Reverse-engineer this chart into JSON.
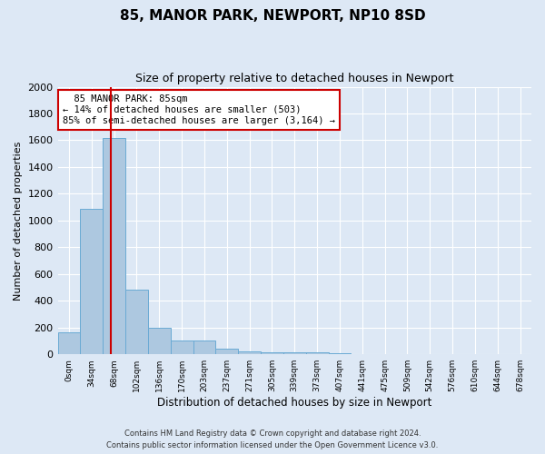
{
  "title1": "85, MANOR PARK, NEWPORT, NP10 8SD",
  "title2": "Size of property relative to detached houses in Newport",
  "xlabel": "Distribution of detached houses by size in Newport",
  "ylabel": "Number of detached properties",
  "bar_color": "#adc8e0",
  "bar_edge_color": "#6aaad4",
  "background_color": "#dde8f5",
  "fig_background_color": "#dde8f5",
  "grid_color": "#ffffff",
  "categories": [
    "0sqm",
    "34sqm",
    "68sqm",
    "102sqm",
    "136sqm",
    "170sqm",
    "203sqm",
    "237sqm",
    "271sqm",
    "305sqm",
    "339sqm",
    "373sqm",
    "407sqm",
    "441sqm",
    "475sqm",
    "509sqm",
    "542sqm",
    "576sqm",
    "610sqm",
    "644sqm",
    "678sqm"
  ],
  "values": [
    165,
    1085,
    1620,
    480,
    200,
    100,
    100,
    40,
    25,
    15,
    15,
    15,
    5,
    0,
    0,
    0,
    0,
    0,
    0,
    0,
    0
  ],
  "ylim": [
    0,
    2000
  ],
  "yticks": [
    0,
    200,
    400,
    600,
    800,
    1000,
    1200,
    1400,
    1600,
    1800,
    2000
  ],
  "red_line_x": 1.87,
  "annotation_text": "  85 MANOR PARK: 85sqm\n← 14% of detached houses are smaller (503)\n85% of semi-detached houses are larger (3,164) →",
  "annotation_box_color": "#ffffff",
  "annotation_border_color": "#cc0000",
  "footer1": "Contains HM Land Registry data © Crown copyright and database right 2024.",
  "footer2": "Contains public sector information licensed under the Open Government Licence v3.0."
}
